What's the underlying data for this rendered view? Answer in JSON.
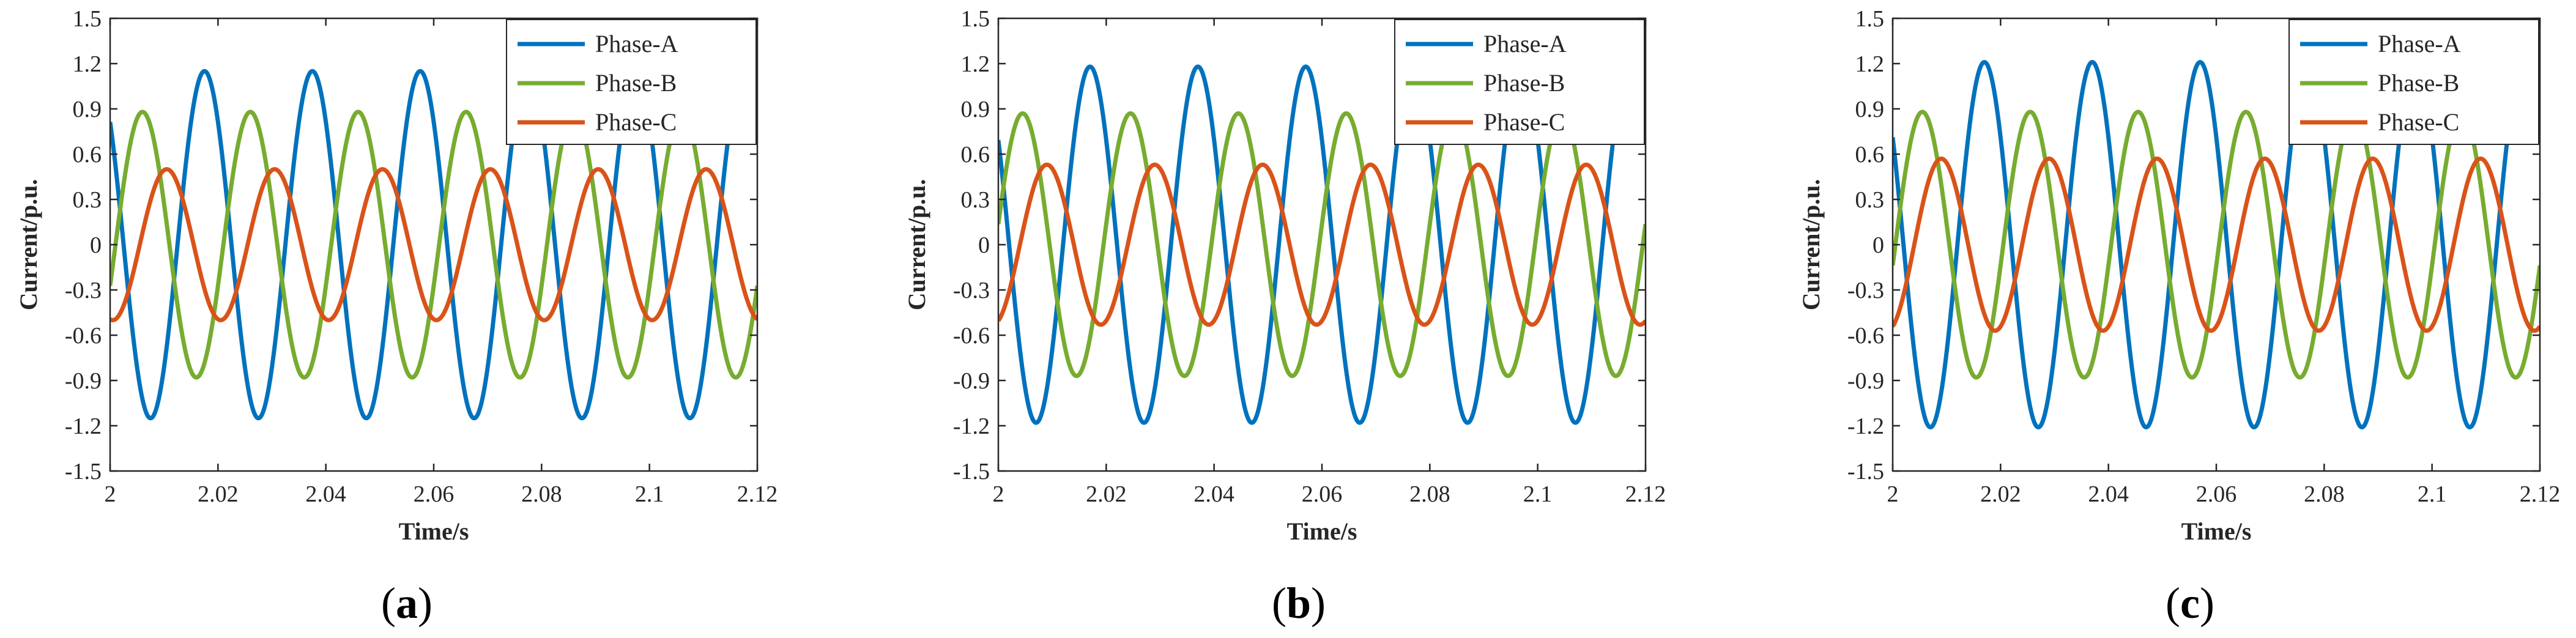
{
  "chart_data": [
    {
      "type": "line",
      "caption": {
        "open": "(",
        "letter": "a",
        "close": ")"
      },
      "xlabel": "Time/s",
      "ylabel": "Current/p.u.",
      "xlim": [
        2,
        2.12
      ],
      "ylim": [
        -1.5,
        1.5
      ],
      "xticks": [
        2,
        2.02,
        2.04,
        2.06,
        2.08,
        2.1,
        2.12
      ],
      "xtick_labels": [
        "2",
        "2.02",
        "2.04",
        "2.06",
        "2.08",
        "2.1",
        "2.12"
      ],
      "yticks": [
        -1.5,
        -1.2,
        -0.9,
        -0.6,
        -0.3,
        0,
        0.3,
        0.6,
        0.9,
        1.2,
        1.5
      ],
      "ytick_labels": [
        "-1.5",
        "-1.2",
        "-0.9",
        "-0.6",
        "-0.3",
        "0",
        "0.3",
        "0.6",
        "0.9",
        "1.2",
        "1.5"
      ],
      "legend_position": "top-right",
      "series": [
        {
          "name": "Phase-A",
          "color": "#0072BD",
          "amplitude": 1.15,
          "frequency_hz": 50,
          "first_peak_s": 2.0175
        },
        {
          "name": "Phase-B",
          "color": "#77AC30",
          "amplitude": 0.88,
          "frequency_hz": 50,
          "first_peak_s": 2.006
        },
        {
          "name": "Phase-C",
          "color": "#D95319",
          "amplitude": 0.5,
          "frequency_hz": 50,
          "first_peak_s": 2.0105
        }
      ]
    },
    {
      "type": "line",
      "caption": {
        "open": "(",
        "letter": "b",
        "close": ")"
      },
      "xlabel": "Time/s",
      "ylabel": "Current/p.u.",
      "xlim": [
        2,
        2.12
      ],
      "ylim": [
        -1.5,
        1.5
      ],
      "xticks": [
        2,
        2.02,
        2.04,
        2.06,
        2.08,
        2.1,
        2.12
      ],
      "xtick_labels": [
        "2",
        "2.02",
        "2.04",
        "2.06",
        "2.08",
        "2.1",
        "2.12"
      ],
      "yticks": [
        -1.5,
        -1.2,
        -0.9,
        -0.6,
        -0.3,
        0,
        0.3,
        0.6,
        0.9,
        1.2,
        1.5
      ],
      "ytick_labels": [
        "-1.5",
        "-1.2",
        "-0.9",
        "-0.6",
        "-0.3",
        "0",
        "0.3",
        "0.6",
        "0.9",
        "1.2",
        "1.5"
      ],
      "legend_position": "top-right",
      "series": [
        {
          "name": "Phase-A",
          "color": "#0072BD",
          "amplitude": 1.18,
          "frequency_hz": 50,
          "first_peak_s": 2.017
        },
        {
          "name": "Phase-B",
          "color": "#77AC30",
          "amplitude": 0.87,
          "frequency_hz": 50,
          "first_peak_s": 2.0045
        },
        {
          "name": "Phase-C",
          "color": "#D95319",
          "amplitude": 0.53,
          "frequency_hz": 50,
          "first_peak_s": 2.009
        }
      ]
    },
    {
      "type": "line",
      "caption": {
        "open": "(",
        "letter": "c",
        "close": ")"
      },
      "xlabel": "Time/s",
      "ylabel": "Current/p.u.",
      "xlim": [
        2,
        2.12
      ],
      "ylim": [
        -1.5,
        1.5
      ],
      "xticks": [
        2,
        2.02,
        2.04,
        2.06,
        2.08,
        2.1,
        2.12
      ],
      "xtick_labels": [
        "2",
        "2.02",
        "2.04",
        "2.06",
        "2.08",
        "2.1",
        "2.12"
      ],
      "yticks": [
        -1.5,
        -1.2,
        -0.9,
        -0.6,
        -0.3,
        0,
        0.3,
        0.6,
        0.9,
        1.2,
        1.5
      ],
      "ytick_labels": [
        "-1.5",
        "-1.2",
        "-0.9",
        "-0.6",
        "-0.3",
        "0",
        "0.3",
        "0.6",
        "0.9",
        "1.2",
        "1.5"
      ],
      "legend_position": "top-right",
      "series": [
        {
          "name": "Phase-A",
          "color": "#0072BD",
          "amplitude": 1.21,
          "frequency_hz": 50,
          "first_peak_s": 2.017
        },
        {
          "name": "Phase-B",
          "color": "#77AC30",
          "amplitude": 0.88,
          "frequency_hz": 50,
          "first_peak_s": 2.0055
        },
        {
          "name": "Phase-C",
          "color": "#D95319",
          "amplitude": 0.57,
          "frequency_hz": 50,
          "first_peak_s": 2.009
        }
      ]
    }
  ]
}
